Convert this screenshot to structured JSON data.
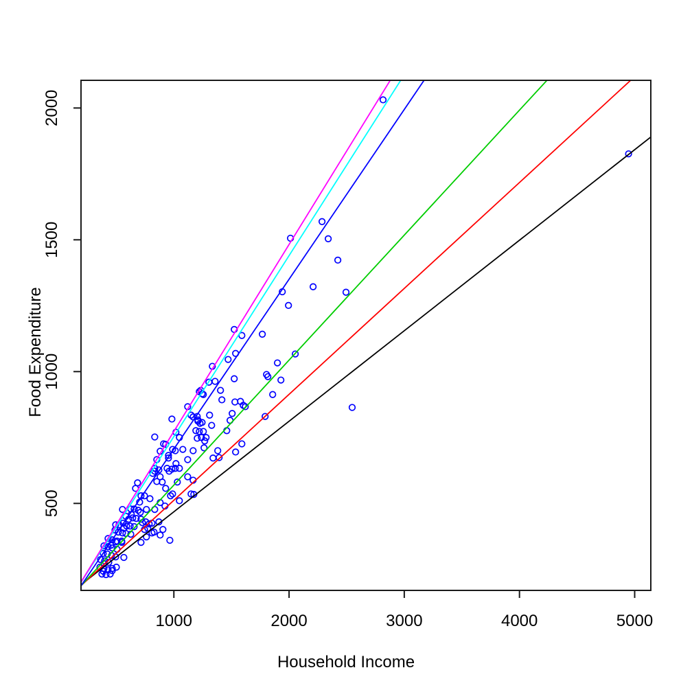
{
  "chart_data": {
    "type": "scatter",
    "title": "",
    "xlabel": "Household Income",
    "ylabel": "Food Expenditure",
    "xlim": [
      194,
      5140
    ],
    "ylim": [
      170,
      2105
    ],
    "x_ticks": [
      1000,
      2000,
      3000,
      4000,
      5000
    ],
    "y_ticks": [
      500,
      1000,
      1500,
      2000
    ],
    "grid": false,
    "legend": "none",
    "point_style": {
      "shape": "open-circle",
      "color": "#0000FF",
      "radius_px": 4.3
    },
    "axis_color": "#000000",
    "background": "#FFFFFF",
    "points": [
      [
        4947,
        1826
      ],
      [
        2816,
        2031
      ],
      [
        2548,
        864
      ],
      [
        2286,
        1569
      ],
      [
        2340,
        1504
      ],
      [
        2012,
        1506
      ],
      [
        2423,
        1423
      ],
      [
        2209,
        1322
      ],
      [
        2494,
        1301
      ],
      [
        1941,
        1303
      ],
      [
        1995,
        1251
      ],
      [
        1768,
        1142
      ],
      [
        1524,
        1160
      ],
      [
        1590,
        1137
      ],
      [
        1536,
        1069
      ],
      [
        2054,
        1067
      ],
      [
        1899,
        1033
      ],
      [
        1471,
        1046
      ],
      [
        1334,
        1020
      ],
      [
        1304,
        960
      ],
      [
        1804,
        989
      ],
      [
        1816,
        981
      ],
      [
        1929,
        968
      ],
      [
        1524,
        973
      ],
      [
        1358,
        963
      ],
      [
        1233,
        929
      ],
      [
        1245,
        916
      ],
      [
        1405,
        929
      ],
      [
        1417,
        893
      ],
      [
        1858,
        913
      ],
      [
        1530,
        885
      ],
      [
        1578,
        887
      ],
      [
        1602,
        872
      ],
      [
        1620,
        867
      ],
      [
        1506,
        841
      ],
      [
        1488,
        815
      ],
      [
        1310,
        835
      ],
      [
        1328,
        796
      ],
      [
        1203,
        830
      ],
      [
        1209,
        812
      ],
      [
        1245,
        807
      ],
      [
        1191,
        776
      ],
      [
        1221,
        773
      ],
      [
        1256,
        773
      ],
      [
        1203,
        747
      ],
      [
        1280,
        750
      ],
      [
        1459,
        776
      ],
      [
        1792,
        830
      ],
      [
        1262,
        711
      ],
      [
        1381,
        700
      ],
      [
        1340,
        672
      ],
      [
        1393,
        674
      ],
      [
        1536,
        695
      ],
      [
        1590,
        726
      ],
      [
        983,
        820
      ],
      [
        834,
        752
      ],
      [
        1221,
        924
      ],
      [
        1256,
        913
      ],
      [
        1120,
        867
      ],
      [
        1149,
        835
      ],
      [
        1167,
        828
      ],
      [
        1209,
        817
      ],
      [
        1227,
        804
      ],
      [
        1018,
        770
      ],
      [
        1048,
        750
      ],
      [
        911,
        726
      ],
      [
        929,
        724
      ],
      [
        881,
        698
      ],
      [
        852,
        666
      ],
      [
        953,
        682
      ],
      [
        953,
        672
      ],
      [
        989,
        705
      ],
      [
        1012,
        700
      ],
      [
        1078,
        705
      ],
      [
        1167,
        700
      ],
      [
        1120,
        666
      ],
      [
        1268,
        737
      ],
      [
        1239,
        750
      ],
      [
        1018,
        651
      ],
      [
        1048,
        633
      ],
      [
        983,
        630
      ],
      [
        870,
        627
      ],
      [
        834,
        622
      ],
      [
        685,
        578
      ],
      [
        667,
        557
      ],
      [
        834,
        633
      ],
      [
        816,
        614
      ],
      [
        881,
        601
      ],
      [
        941,
        633
      ],
      [
        959,
        622
      ],
      [
        1012,
        633
      ],
      [
        899,
        581
      ],
      [
        929,
        557
      ],
      [
        852,
        583
      ],
      [
        715,
        529
      ],
      [
        745,
        529
      ],
      [
        792,
        518
      ],
      [
        703,
        505
      ],
      [
        881,
        503
      ],
      [
        923,
        490
      ],
      [
        971,
        529
      ],
      [
        989,
        536
      ],
      [
        1048,
        510
      ],
      [
        1120,
        601
      ],
      [
        1149,
        536
      ],
      [
        1167,
        588
      ],
      [
        1030,
        581
      ],
      [
        1173,
        534
      ],
      [
        554,
        477
      ],
      [
        626,
        479
      ],
      [
        691,
        474
      ],
      [
        709,
        466
      ],
      [
        584,
        451
      ],
      [
        608,
        440
      ],
      [
        643,
        445
      ],
      [
        673,
        443
      ],
      [
        715,
        440
      ],
      [
        560,
        425
      ],
      [
        524,
        419
      ],
      [
        590,
        414
      ],
      [
        620,
        414
      ],
      [
        655,
        412
      ],
      [
        727,
        427
      ],
      [
        756,
        430
      ],
      [
        786,
        422
      ],
      [
        745,
        401
      ],
      [
        489,
        399
      ],
      [
        518,
        391
      ],
      [
        554,
        388
      ],
      [
        584,
        386
      ],
      [
        626,
        383
      ],
      [
        429,
        367
      ],
      [
        465,
        362
      ],
      [
        507,
        357
      ],
      [
        548,
        352
      ],
      [
        393,
        339
      ],
      [
        429,
        336
      ],
      [
        465,
        331
      ],
      [
        507,
        326
      ],
      [
        387,
        310
      ],
      [
        423,
        308
      ],
      [
        459,
        302
      ],
      [
        495,
        297
      ],
      [
        364,
        287
      ],
      [
        399,
        282
      ],
      [
        435,
        276
      ],
      [
        566,
        295
      ],
      [
        358,
        258
      ],
      [
        393,
        253
      ],
      [
        429,
        248
      ],
      [
        465,
        253
      ],
      [
        501,
        258
      ],
      [
        376,
        232
      ],
      [
        411,
        230
      ],
      [
        447,
        232
      ],
      [
        870,
        430
      ],
      [
        905,
        401
      ],
      [
        828,
        391
      ],
      [
        762,
        373
      ],
      [
        715,
        352
      ],
      [
        965,
        360
      ],
      [
        762,
        477
      ],
      [
        834,
        477
      ],
      [
        774,
        406
      ],
      [
        810,
        425
      ],
      [
        881,
        380
      ],
      [
        810,
        388
      ],
      [
        453,
        341
      ],
      [
        393,
        271
      ],
      [
        465,
        245
      ],
      [
        387,
        243
      ],
      [
        495,
        419
      ],
      [
        566,
        406
      ],
      [
        655,
        479
      ],
      [
        631,
        458
      ],
      [
        495,
        354
      ],
      [
        548,
        357
      ]
    ],
    "lines": [
      {
        "name": "line-black",
        "color": "#000000",
        "intercept": 124.88,
        "slope": 0.3434
      },
      {
        "name": "line-red",
        "color": "#FF0000",
        "intercept": 110.14,
        "slope": 0.4018
      },
      {
        "name": "line-green",
        "color": "#00CD00",
        "intercept": 95.48,
        "slope": 0.4741
      },
      {
        "name": "line-blue",
        "color": "#0000FF",
        "intercept": 62.4,
        "slope": 0.644
      },
      {
        "name": "line-cyan",
        "color": "#00FFFF",
        "intercept": 67.35,
        "slope": 0.6863
      },
      {
        "name": "line-magenta",
        "color": "#FF00FF",
        "intercept": 64.1,
        "slope": 0.7091
      }
    ]
  }
}
